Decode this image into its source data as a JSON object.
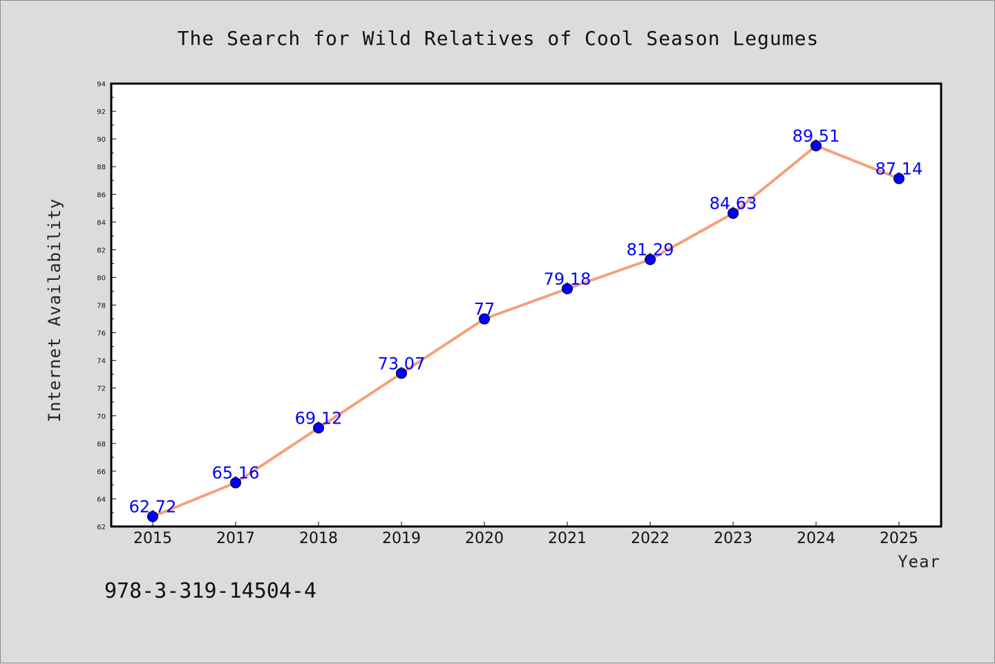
{
  "chart_data": {
    "type": "line",
    "title": "The Search for Wild Relatives of Cool Season Legumes",
    "xlabel": "Year",
    "ylabel": "Internet Availability",
    "categories": [
      "2015",
      "2017",
      "2018",
      "2019",
      "2020",
      "2021",
      "2022",
      "2023",
      "2024",
      "2025"
    ],
    "series": [
      {
        "values": [
          62.72,
          65.16,
          69.12,
          73.07,
          77,
          79.18,
          81.29,
          84.63,
          89.51,
          87.14
        ],
        "data_labels": [
          "62.72",
          "65.16",
          "69.12",
          "73.07",
          "77",
          "79.18",
          "81.29",
          "84.63",
          "89.51",
          "87.14"
        ],
        "line_color": "#f4a07a",
        "marker_color": "#0000ff"
      }
    ],
    "ylim": [
      62,
      94
    ],
    "yticks": [
      "62",
      "64",
      "66",
      "68",
      "70",
      "72",
      "74",
      "76",
      "78",
      "80",
      "82",
      "84",
      "86",
      "88",
      "90",
      "92",
      "94"
    ],
    "grid": false,
    "legend": "none"
  },
  "footer_text": "978-3-319-14504-4",
  "colors": {
    "background": "#dcdcdc",
    "plot_background": "#ffffff",
    "line": "#f4a07a",
    "marker": "#0000ff",
    "data_label": "#0000ff"
  }
}
